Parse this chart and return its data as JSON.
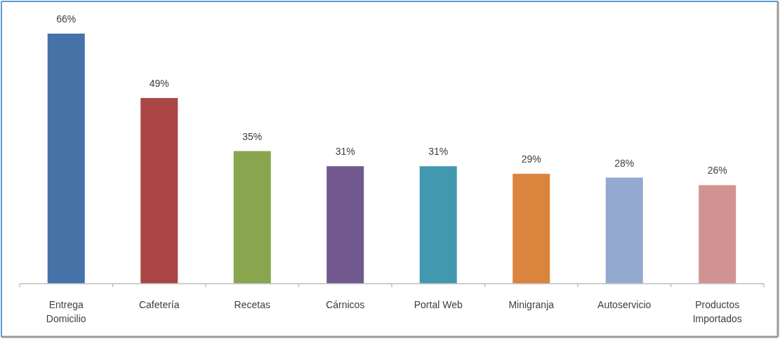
{
  "chart_data": {
    "type": "bar",
    "categories": [
      "Entrega Domicilio",
      "Cafetería",
      "Recetas",
      "Cárnicos",
      "Portal Web",
      "Minigranja",
      "Autoservicio",
      "Productos Importados"
    ],
    "values": [
      66,
      49,
      35,
      31,
      31,
      29,
      28,
      26
    ],
    "colors": [
      "#4572a7",
      "#aa4643",
      "#89a54e",
      "#71588f",
      "#4198af",
      "#db843d",
      "#93a9cf",
      "#d19392"
    ],
    "value_labels": [
      "66%",
      "49%",
      "35%",
      "31%",
      "31%",
      "29%",
      "28%",
      "26%"
    ]
  }
}
